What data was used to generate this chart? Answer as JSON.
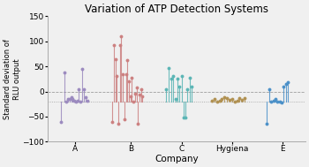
{
  "title": "Variation of ATP Detection Systems",
  "xlabel": "Company",
  "ylabel": "Standard deviation of\nRLU output",
  "ylim": [
    -100,
    150
  ],
  "yticks": [
    -100,
    -50,
    0,
    50,
    100,
    150
  ],
  "hline1": 0,
  "hline2": -20,
  "background_color": "#f0f0f0",
  "companies": {
    "A": {
      "color": "#9b8abf",
      "x_center": 1.0,
      "points": [
        [
          0.72,
          -60
        ],
        [
          0.78,
          38
        ],
        [
          0.82,
          -20
        ],
        [
          0.86,
          -15
        ],
        [
          0.89,
          -15
        ],
        [
          0.92,
          -12
        ],
        [
          0.95,
          -15
        ],
        [
          0.98,
          -18
        ],
        [
          1.01,
          -20
        ],
        [
          1.04,
          -18
        ],
        [
          1.07,
          4
        ],
        [
          1.1,
          -20
        ],
        [
          1.13,
          45
        ],
        [
          1.17,
          4
        ],
        [
          1.2,
          -12
        ],
        [
          1.24,
          -18
        ]
      ]
    },
    "B": {
      "color": "#cc8080",
      "x_center": 2.1,
      "points": [
        [
          1.72,
          -60
        ],
        [
          1.76,
          92
        ],
        [
          1.79,
          65
        ],
        [
          1.82,
          30
        ],
        [
          1.85,
          -65
        ],
        [
          1.88,
          92
        ],
        [
          1.91,
          110
        ],
        [
          1.94,
          35
        ],
        [
          1.97,
          -55
        ],
        [
          2.0,
          35
        ],
        [
          2.03,
          62
        ],
        [
          2.06,
          20
        ],
        [
          2.09,
          -10
        ],
        [
          2.12,
          28
        ],
        [
          2.15,
          -20
        ],
        [
          2.18,
          -5
        ],
        [
          2.21,
          8
        ],
        [
          2.24,
          -65
        ],
        [
          2.27,
          -6
        ],
        [
          2.3,
          4
        ],
        [
          2.33,
          -10
        ]
      ]
    },
    "C": {
      "color": "#5ab5b5",
      "x_center": 3.1,
      "points": [
        [
          2.8,
          5
        ],
        [
          2.85,
          46
        ],
        [
          2.9,
          25
        ],
        [
          2.94,
          30
        ],
        [
          2.98,
          -15
        ],
        [
          3.02,
          25
        ],
        [
          3.06,
          10
        ],
        [
          3.1,
          30
        ],
        [
          3.14,
          -52
        ],
        [
          3.18,
          -52
        ],
        [
          3.22,
          5
        ],
        [
          3.26,
          28
        ],
        [
          3.3,
          10
        ]
      ]
    },
    "Hygiena": {
      "color": "#b09050",
      "x_center": 4.1,
      "points": [
        [
          3.7,
          -18
        ],
        [
          3.75,
          -15
        ],
        [
          3.8,
          -20
        ],
        [
          3.85,
          -18
        ],
        [
          3.9,
          -15
        ],
        [
          3.95,
          -12
        ],
        [
          4.0,
          -14
        ],
        [
          4.05,
          -16
        ],
        [
          4.1,
          -15
        ],
        [
          4.15,
          -20
        ],
        [
          4.2,
          -18
        ],
        [
          4.25,
          -14
        ],
        [
          4.3,
          -16
        ],
        [
          4.35,
          -14
        ]
      ]
    },
    "E": {
      "color": "#4a90c8",
      "x_center": 5.1,
      "points": [
        [
          4.78,
          -65
        ],
        [
          4.83,
          5
        ],
        [
          4.88,
          -20
        ],
        [
          4.92,
          -18
        ],
        [
          4.96,
          -15
        ],
        [
          5.0,
          -20
        ],
        [
          5.04,
          -20
        ],
        [
          5.08,
          -22
        ],
        [
          5.12,
          10
        ],
        [
          5.16,
          15
        ],
        [
          5.2,
          18
        ]
      ]
    }
  },
  "xtick_positions": [
    1.0,
    2.1,
    3.1,
    4.1,
    5.1
  ],
  "xtick_labels": [
    "A",
    "B",
    "C",
    "Hygiena",
    "E"
  ],
  "xlim": [
    0.45,
    5.55
  ]
}
